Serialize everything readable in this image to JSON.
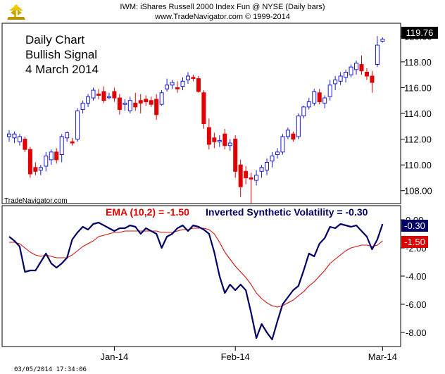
{
  "header": {
    "line1": "IWM:  iShares Russell 2000 Index Fun @ NYSE  (Daily bars)",
    "line2": "www.TradeNavigator.com © 1999-2014"
  },
  "annotation": [
    "Daily Chart",
    "Bullish Signal",
    "4 March 2014"
  ],
  "watermark": "TradeNavigator.com",
  "timestamp": "03/05/2014  17:34:06",
  "indicator_title": {
    "ema": "EMA (10,2) = -1.50",
    "isv": "Inverted Synthetic Volatility = -0.30"
  },
  "colors": {
    "up": "#1a1adf",
    "down": "#e00000",
    "isv_line": "#000066",
    "ema_line": "#d01010",
    "last_price_bg": "#000000",
    "isv_badge_bg": "#000066",
    "ema_badge_bg": "#dd0000"
  },
  "chart_data": [
    {
      "type": "candlestick",
      "title": "IWM:  iShares Russell 2000 Index Fun @ NYSE  (Daily bars)",
      "y_ticks": [
        "108.00",
        "110.00",
        "112.00",
        "114.00",
        "116.00",
        "118.00",
        "120.00"
      ],
      "ylim": [
        107.0,
        121.0
      ],
      "last_price_label": "119.76",
      "candles": [
        {
          "o": 112.2,
          "h": 112.7,
          "l": 111.8,
          "c": 112.4
        },
        {
          "o": 112.1,
          "h": 112.6,
          "l": 111.7,
          "c": 112.4
        },
        {
          "o": 111.8,
          "h": 112.4,
          "l": 111.5,
          "c": 112.2
        },
        {
          "o": 112.0,
          "h": 112.2,
          "l": 111.0,
          "c": 111.2
        },
        {
          "o": 111.2,
          "h": 111.4,
          "l": 109.0,
          "c": 109.3
        },
        {
          "o": 109.8,
          "h": 110.2,
          "l": 109.2,
          "c": 109.5
        },
        {
          "o": 109.6,
          "h": 110.0,
          "l": 109.2,
          "c": 109.8
        },
        {
          "o": 109.9,
          "h": 111.0,
          "l": 109.5,
          "c": 110.7
        },
        {
          "o": 110.4,
          "h": 111.2,
          "l": 110.0,
          "c": 111.0
        },
        {
          "o": 111.0,
          "h": 111.3,
          "l": 110.1,
          "c": 110.4
        },
        {
          "o": 110.8,
          "h": 112.4,
          "l": 110.2,
          "c": 112.2
        },
        {
          "o": 112.1,
          "h": 112.6,
          "l": 111.8,
          "c": 112.5
        },
        {
          "o": 111.8,
          "h": 112.1,
          "l": 111.5,
          "c": 111.7
        },
        {
          "o": 112.0,
          "h": 114.4,
          "l": 111.8,
          "c": 114.2
        },
        {
          "o": 114.3,
          "h": 115.0,
          "l": 114.0,
          "c": 114.8
        },
        {
          "o": 114.8,
          "h": 115.5,
          "l": 114.5,
          "c": 115.3
        },
        {
          "o": 115.2,
          "h": 116.0,
          "l": 115.0,
          "c": 115.8
        },
        {
          "o": 115.5,
          "h": 115.9,
          "l": 115.1,
          "c": 115.4
        },
        {
          "o": 115.7,
          "h": 116.1,
          "l": 114.8,
          "c": 115.0
        },
        {
          "o": 115.3,
          "h": 115.6,
          "l": 115.1,
          "c": 115.3
        },
        {
          "o": 115.7,
          "h": 116.0,
          "l": 114.9,
          "c": 115.2
        },
        {
          "o": 115.2,
          "h": 115.5,
          "l": 113.9,
          "c": 114.3
        },
        {
          "o": 114.7,
          "h": 115.1,
          "l": 114.2,
          "c": 114.8
        },
        {
          "o": 114.2,
          "h": 115.3,
          "l": 114.0,
          "c": 115.0
        },
        {
          "o": 114.8,
          "h": 115.6,
          "l": 114.2,
          "c": 114.5
        },
        {
          "o": 115.0,
          "h": 115.5,
          "l": 114.0,
          "c": 114.8
        },
        {
          "o": 115.1,
          "h": 115.4,
          "l": 114.6,
          "c": 114.9
        },
        {
          "o": 115.0,
          "h": 115.3,
          "l": 114.5,
          "c": 114.7
        },
        {
          "o": 115.1,
          "h": 115.5,
          "l": 113.5,
          "c": 113.9
        },
        {
          "o": 114.7,
          "h": 115.8,
          "l": 114.6,
          "c": 115.6
        },
        {
          "o": 115.9,
          "h": 116.7,
          "l": 115.7,
          "c": 116.2
        },
        {
          "o": 116.2,
          "h": 116.6,
          "l": 115.9,
          "c": 116.4
        },
        {
          "o": 116.0,
          "h": 116.5,
          "l": 115.6,
          "c": 115.9
        },
        {
          "o": 116.1,
          "h": 116.8,
          "l": 115.8,
          "c": 116.5
        },
        {
          "o": 116.6,
          "h": 117.2,
          "l": 116.3,
          "c": 116.9
        },
        {
          "o": 116.8,
          "h": 117.0,
          "l": 116.5,
          "c": 116.7
        },
        {
          "o": 116.7,
          "h": 116.9,
          "l": 115.6,
          "c": 115.7
        },
        {
          "o": 115.6,
          "h": 115.8,
          "l": 112.8,
          "c": 113.2
        },
        {
          "o": 112.9,
          "h": 113.6,
          "l": 111.2,
          "c": 111.6
        },
        {
          "o": 112.1,
          "h": 112.5,
          "l": 111.3,
          "c": 111.8
        },
        {
          "o": 111.8,
          "h": 112.3,
          "l": 111.4,
          "c": 111.9
        },
        {
          "o": 112.4,
          "h": 112.8,
          "l": 111.2,
          "c": 111.5
        },
        {
          "o": 111.5,
          "h": 112.0,
          "l": 111.1,
          "c": 111.7
        },
        {
          "o": 112.0,
          "h": 112.3,
          "l": 109.0,
          "c": 109.5
        },
        {
          "o": 110.0,
          "h": 110.4,
          "l": 107.5,
          "c": 108.3
        },
        {
          "o": 109.5,
          "h": 109.9,
          "l": 108.5,
          "c": 109.0
        },
        {
          "o": 109.0,
          "h": 109.4,
          "l": 107.0,
          "c": 108.9
        },
        {
          "o": 108.8,
          "h": 109.6,
          "l": 108.4,
          "c": 109.2
        },
        {
          "o": 109.5,
          "h": 110.0,
          "l": 109.0,
          "c": 109.8
        },
        {
          "o": 109.6,
          "h": 110.5,
          "l": 109.2,
          "c": 110.2
        },
        {
          "o": 110.3,
          "h": 111.0,
          "l": 109.8,
          "c": 110.7
        },
        {
          "o": 110.8,
          "h": 111.3,
          "l": 110.5,
          "c": 111.0
        },
        {
          "o": 111.0,
          "h": 112.4,
          "l": 110.8,
          "c": 112.2
        },
        {
          "o": 112.2,
          "h": 112.9,
          "l": 112.0,
          "c": 112.7
        },
        {
          "o": 112.4,
          "h": 112.6,
          "l": 111.8,
          "c": 112.0
        },
        {
          "o": 112.2,
          "h": 114.0,
          "l": 112.0,
          "c": 113.8
        },
        {
          "o": 113.8,
          "h": 114.6,
          "l": 113.6,
          "c": 114.5
        },
        {
          "o": 114.5,
          "h": 115.2,
          "l": 114.3,
          "c": 114.9
        },
        {
          "o": 114.8,
          "h": 115.9,
          "l": 114.6,
          "c": 115.7
        },
        {
          "o": 115.6,
          "h": 115.9,
          "l": 114.7,
          "c": 114.9
        },
        {
          "o": 114.8,
          "h": 115.4,
          "l": 114.4,
          "c": 115.2
        },
        {
          "o": 115.3,
          "h": 116.6,
          "l": 115.0,
          "c": 116.2
        },
        {
          "o": 116.3,
          "h": 116.9,
          "l": 115.8,
          "c": 116.6
        },
        {
          "o": 116.5,
          "h": 117.2,
          "l": 116.2,
          "c": 116.9
        },
        {
          "o": 116.8,
          "h": 117.4,
          "l": 116.4,
          "c": 117.2
        },
        {
          "o": 117.0,
          "h": 117.8,
          "l": 116.8,
          "c": 117.6
        },
        {
          "o": 117.4,
          "h": 118.1,
          "l": 117.0,
          "c": 117.9
        },
        {
          "o": 117.8,
          "h": 118.5,
          "l": 117.0,
          "c": 117.3
        },
        {
          "o": 117.2,
          "h": 117.5,
          "l": 116.6,
          "c": 116.9
        },
        {
          "o": 116.9,
          "h": 117.3,
          "l": 115.6,
          "c": 116.4
        },
        {
          "o": 117.8,
          "h": 120.0,
          "l": 117.6,
          "c": 119.3
        },
        {
          "o": 119.6,
          "h": 119.9,
          "l": 119.5,
          "c": 119.76
        }
      ]
    },
    {
      "type": "line",
      "y_ticks": [
        "0.00",
        "-2.00",
        "-4.00",
        "-6.00",
        "-8.00"
      ],
      "ylim": [
        -9.1,
        0.9
      ],
      "x_tick_labels": [
        "Jan-14",
        "Feb-14",
        "Mar-14"
      ],
      "x_tick_index": [
        20,
        43,
        71
      ],
      "series": [
        {
          "name": "Inverted Synthetic Volatility",
          "last_label": "-0.30",
          "values": [
            -1.2,
            -1.5,
            -1.9,
            -3.7,
            -3.6,
            -3.6,
            -3.0,
            -2.4,
            -3.1,
            -3.4,
            -3.1,
            -2.7,
            -1.4,
            -0.9,
            -0.5,
            -0.7,
            -0.3,
            -0.2,
            -0.4,
            -0.6,
            -0.8,
            -0.6,
            -0.6,
            -0.4,
            -0.5,
            -1.0,
            -0.6,
            -0.8,
            -1.0,
            -2.0,
            -1.2,
            -1.0,
            -0.6,
            -0.4,
            -0.8,
            -0.4,
            -0.5,
            -0.7,
            -1.0,
            -2.3,
            -4.0,
            -5.2,
            -4.6,
            -5.0,
            -4.6,
            -5.0,
            -6.6,
            -8.4,
            -7.4,
            -8.0,
            -8.5,
            -7.2,
            -6.0,
            -5.5,
            -5.0,
            -4.7,
            -3.6,
            -2.4,
            -2.6,
            -1.7,
            -1.3,
            -0.5,
            -0.6,
            -0.3,
            -0.4,
            -0.5,
            -0.4,
            -0.8,
            -1.2,
            -2.1,
            -1.4,
            -0.3
          ]
        },
        {
          "name": "EMA (10,2)",
          "last_label": "-1.50",
          "values": [
            -1.6,
            -1.6,
            -1.7,
            -2.0,
            -2.3,
            -2.5,
            -2.6,
            -2.5,
            -2.6,
            -2.7,
            -2.7,
            -2.7,
            -2.5,
            -2.2,
            -1.9,
            -1.7,
            -1.5,
            -1.2,
            -1.1,
            -1.0,
            -0.9,
            -0.9,
            -0.8,
            -0.8,
            -0.8,
            -0.8,
            -0.8,
            -0.8,
            -0.8,
            -0.9,
            -0.9,
            -0.9,
            -0.8,
            -0.7,
            -0.7,
            -0.6,
            -0.6,
            -0.6,
            -0.7,
            -1.0,
            -1.6,
            -2.3,
            -2.8,
            -3.3,
            -3.7,
            -4.1,
            -4.6,
            -5.2,
            -5.6,
            -5.9,
            -6.1,
            -6.2,
            -6.1,
            -5.9,
            -5.7,
            -5.4,
            -5.1,
            -4.7,
            -4.4,
            -4.0,
            -3.6,
            -3.1,
            -2.8,
            -2.5,
            -2.2,
            -2.0,
            -1.9,
            -1.8,
            -1.8,
            -1.9,
            -1.8,
            -1.5
          ]
        }
      ]
    }
  ]
}
